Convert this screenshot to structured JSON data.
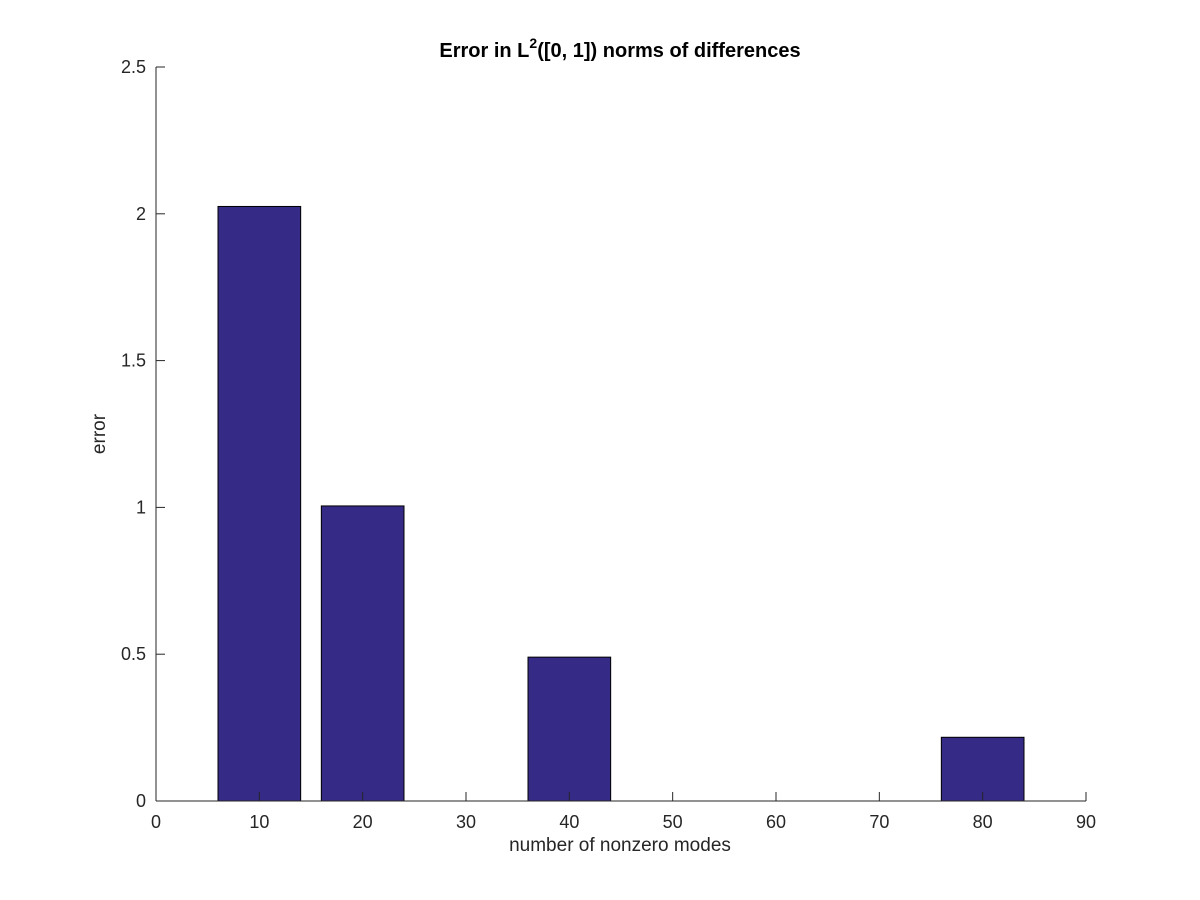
{
  "chart_data": {
    "type": "bar",
    "title": {
      "prefix": "Error in L",
      "superscript": "2",
      "suffix": "([0, 1]) norms of differences"
    },
    "xlabel": "number of nonzero modes",
    "ylabel": "error",
    "x": [
      10,
      20,
      40,
      80
    ],
    "values": [
      2.025,
      1.005,
      0.49,
      0.217
    ],
    "bar_width": 8,
    "xlim": [
      0,
      90
    ],
    "ylim": [
      0,
      2.5
    ],
    "xticks": [
      0,
      10,
      20,
      30,
      40,
      50,
      60,
      70,
      80,
      90
    ],
    "yticks": [
      0,
      0.5,
      1,
      1.5,
      2,
      2.5
    ],
    "ytick_labels": [
      "0",
      "0.5",
      "1",
      "1.5",
      "2",
      "2.5"
    ],
    "grid": false,
    "colors": {
      "bar": "#352a86",
      "bar_edge": "#000000"
    }
  }
}
